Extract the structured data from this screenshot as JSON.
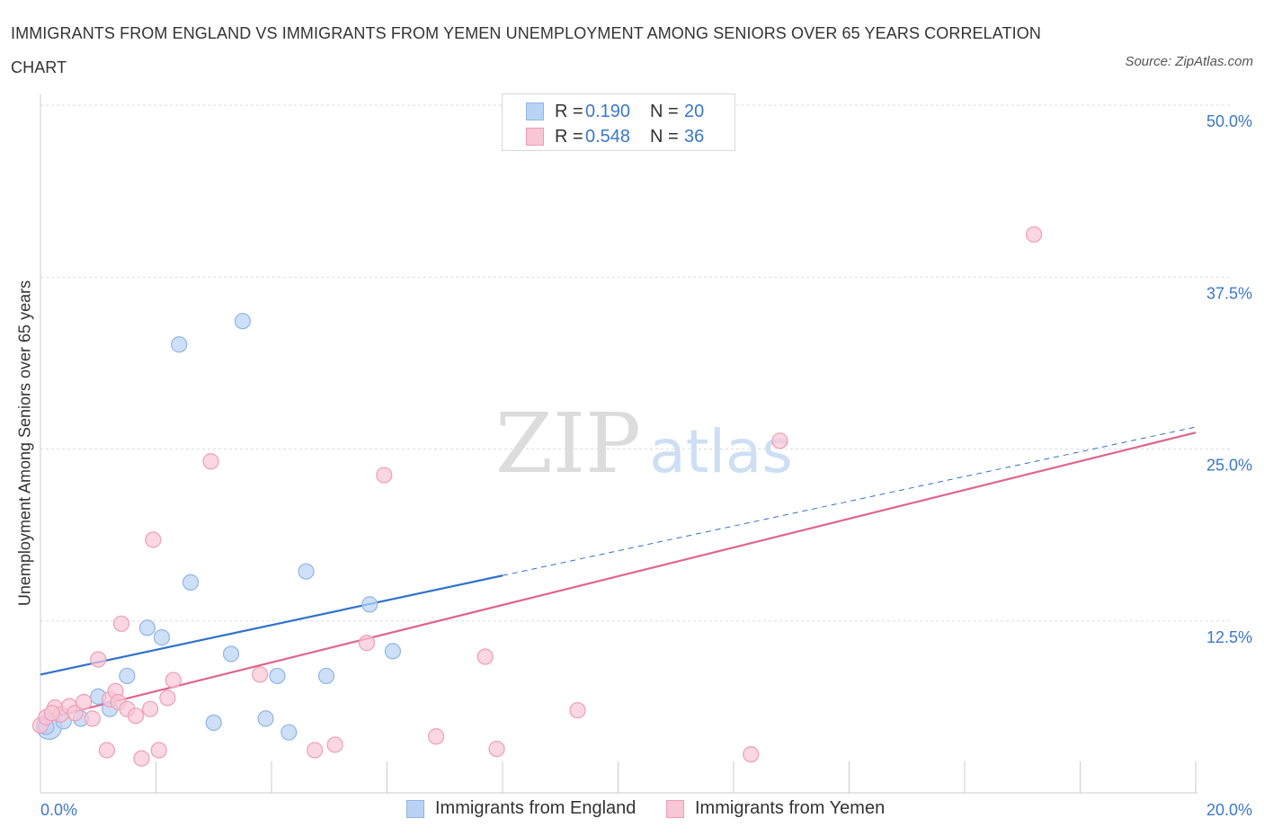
{
  "title": "IMMIGRANTS FROM ENGLAND VS IMMIGRANTS FROM YEMEN UNEMPLOYMENT AMONG SENIORS OVER 65 YEARS CORRELATION CHART",
  "source": "Source: ZipAtlas.com",
  "watermark": {
    "zip": "ZIP",
    "atlas": "atlas"
  },
  "legend": {
    "rows": [
      {
        "r_label": "R =",
        "r_value": "0.190",
        "n_label": "N =",
        "n_value": "20"
      },
      {
        "r_label": "R =",
        "r_value": "0.548",
        "n_label": "N =",
        "n_value": "36"
      }
    ]
  },
  "bottom_legend": {
    "england": "Immigrants from England",
    "yemen": "Immigrants from Yemen"
  },
  "colors": {
    "england_fill": "#b9d3f4",
    "england_stroke": "#8fb5e6",
    "england_line": "#2f72cc",
    "yemen_fill": "#f8c6d5",
    "yemen_stroke": "#ef9db7",
    "yemen_line": "#e0658e",
    "tick_label": "#3a78c9",
    "grid": "#dddddd"
  },
  "chart_data": {
    "type": "scatter",
    "title": "IMMIGRANTS FROM ENGLAND VS IMMIGRANTS FROM YEMEN UNEMPLOYMENT AMONG SENIORS OVER 65 YEARS CORRELATION CHART",
    "xlabel": "",
    "ylabel": "Unemployment Among Seniors over 65 years",
    "xlim": [
      0,
      20
    ],
    "ylim": [
      0,
      50
    ],
    "x_tick_labels": [
      {
        "value": 0,
        "label": "0.0%"
      },
      {
        "value": 20,
        "label": "20.0%"
      }
    ],
    "x_ticks": [
      0,
      2,
      4,
      6,
      8,
      10,
      12,
      14,
      16,
      18,
      20
    ],
    "y_ticks": [
      {
        "value": 12.5,
        "label": "12.5%"
      },
      {
        "value": 25,
        "label": "25.0%"
      },
      {
        "value": 37.5,
        "label": "37.5%"
      },
      {
        "value": 50,
        "label": "50.0%"
      }
    ],
    "series": [
      {
        "name": "Immigrants from England",
        "points": [
          [
            0.1,
            4.8
          ],
          [
            0.4,
            5.2
          ],
          [
            0.7,
            5.4
          ],
          [
            1.0,
            7.0
          ],
          [
            1.2,
            6.1
          ],
          [
            1.5,
            8.5
          ],
          [
            1.85,
            12.0
          ],
          [
            2.1,
            11.3
          ],
          [
            2.4,
            32.6
          ],
          [
            2.6,
            15.3
          ],
          [
            3.0,
            5.1
          ],
          [
            3.3,
            10.1
          ],
          [
            3.5,
            34.3
          ],
          [
            3.9,
            5.4
          ],
          [
            4.1,
            8.5
          ],
          [
            4.3,
            4.4
          ],
          [
            4.6,
            16.1
          ],
          [
            4.95,
            8.5
          ],
          [
            5.7,
            13.7
          ],
          [
            6.1,
            10.3
          ]
        ],
        "trend": {
          "x0": 0,
          "y0": 8.6,
          "x1": 8.0,
          "y1": 15.8,
          "dashed_to_x": 20,
          "dashed_to_y": 26.6
        }
      },
      {
        "name": "Immigrants from Yemen",
        "points": [
          [
            0.0,
            4.9
          ],
          [
            0.1,
            5.5
          ],
          [
            0.25,
            6.2
          ],
          [
            0.35,
            5.7
          ],
          [
            0.5,
            6.3
          ],
          [
            0.6,
            5.8
          ],
          [
            0.75,
            6.6
          ],
          [
            0.9,
            5.4
          ],
          [
            1.0,
            9.7
          ],
          [
            1.15,
            3.1
          ],
          [
            1.2,
            6.8
          ],
          [
            1.3,
            7.4
          ],
          [
            1.35,
            6.6
          ],
          [
            1.4,
            12.3
          ],
          [
            1.5,
            6.1
          ],
          [
            1.65,
            5.6
          ],
          [
            1.75,
            2.5
          ],
          [
            1.9,
            6.1
          ],
          [
            1.95,
            18.4
          ],
          [
            2.05,
            3.1
          ],
          [
            2.2,
            6.9
          ],
          [
            2.3,
            8.2
          ],
          [
            2.95,
            24.1
          ],
          [
            3.8,
            8.6
          ],
          [
            4.75,
            3.1
          ],
          [
            5.1,
            3.5
          ],
          [
            5.65,
            10.9
          ],
          [
            5.95,
            23.1
          ],
          [
            6.85,
            4.1
          ],
          [
            7.7,
            9.9
          ],
          [
            7.9,
            3.2
          ],
          [
            9.3,
            6.0
          ],
          [
            12.3,
            2.8
          ],
          [
            12.8,
            25.6
          ],
          [
            17.2,
            40.6
          ],
          [
            0.2,
            5.8
          ]
        ],
        "trend": {
          "x0": 0,
          "y0": 5.3,
          "x1": 20,
          "y1": 26.2
        }
      }
    ]
  }
}
